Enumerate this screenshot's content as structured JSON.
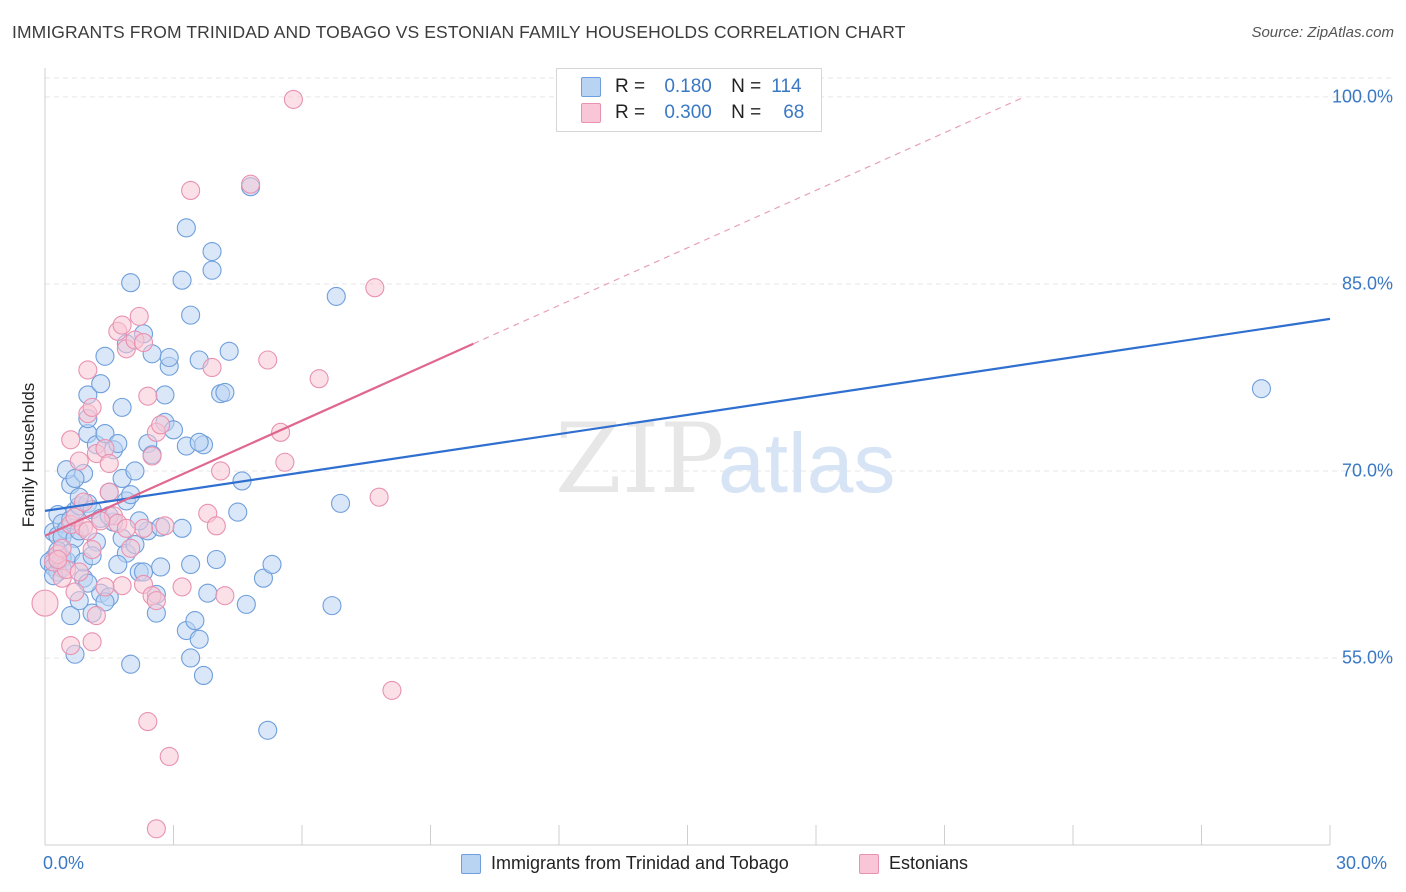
{
  "title": "IMMIGRANTS FROM TRINIDAD AND TOBAGO VS ESTONIAN FAMILY HOUSEHOLDS CORRELATION CHART",
  "source": "Source: ZipAtlas.com",
  "watermark": {
    "zip": "ZIP",
    "atlas": "atlas"
  },
  "legend": {
    "r_label": "R =",
    "n_label": "N =",
    "rows": [
      {
        "r": "0.180",
        "n": "114"
      },
      {
        "r": "0.300",
        "n": "68"
      }
    ]
  },
  "colors": {
    "blue_fill": "#b9d3f3",
    "blue_stroke": "#6f9fdc",
    "blue_line": "#2f6fcf",
    "pink_fill": "#f8c6d6",
    "pink_stroke": "#e892b1",
    "pink_line": "#e0678f",
    "grid": "#e6e6e6",
    "tick_text": "#3a78c4"
  },
  "chart_data": {
    "type": "scatter",
    "ylabel": "Family Households",
    "xlim": [
      0,
      30
    ],
    "ylim": [
      40,
      102
    ],
    "x_tick_labels": [
      "0.0%",
      "30.0%"
    ],
    "y_ticks": [
      {
        "value": 55,
        "label": "55.0%"
      },
      {
        "value": 70,
        "label": "70.0%"
      },
      {
        "value": 85,
        "label": "85.0%"
      },
      {
        "value": 100,
        "label": "100.0%"
      }
    ],
    "grid": true,
    "series": [
      {
        "name": "Immigrants from Trinidad and Tobago",
        "color": "blue",
        "trend": {
          "x0": 0,
          "y0": 66.8,
          "x1": 30,
          "y1": 82.2
        },
        "points": [
          [
            0.2,
            65.1
          ],
          [
            0.3,
            64.8
          ],
          [
            0.2,
            63.0
          ],
          [
            0.1,
            62.7
          ],
          [
            0.3,
            66.5
          ],
          [
            0.4,
            65.8
          ],
          [
            0.5,
            65.3
          ],
          [
            0.6,
            66.1
          ],
          [
            0.4,
            64.7
          ],
          [
            0.3,
            63.6
          ],
          [
            0.2,
            62.3
          ],
          [
            0.5,
            62.8
          ],
          [
            0.7,
            66.8
          ],
          [
            0.8,
            67.2
          ],
          [
            0.6,
            68.9
          ],
          [
            0.9,
            69.8
          ],
          [
            0.7,
            64.6
          ],
          [
            1.0,
            67.4
          ],
          [
            1.1,
            66.9
          ],
          [
            0.8,
            65.2
          ],
          [
            0.5,
            70.1
          ],
          [
            0.7,
            69.4
          ],
          [
            1.0,
            73.0
          ],
          [
            1.0,
            74.2
          ],
          [
            1.0,
            76.1
          ],
          [
            1.3,
            77.0
          ],
          [
            1.4,
            79.2
          ],
          [
            1.2,
            72.1
          ],
          [
            1.4,
            73.0
          ],
          [
            1.6,
            71.7
          ],
          [
            1.7,
            72.2
          ],
          [
            1.8,
            75.1
          ],
          [
            1.5,
            68.3
          ],
          [
            1.8,
            69.4
          ],
          [
            1.9,
            67.6
          ],
          [
            2.0,
            68.1
          ],
          [
            2.1,
            70.0
          ],
          [
            1.6,
            65.9
          ],
          [
            1.3,
            66.2
          ],
          [
            1.2,
            64.3
          ],
          [
            1.8,
            64.6
          ],
          [
            1.9,
            63.4
          ],
          [
            1.7,
            62.5
          ],
          [
            2.2,
            61.9
          ],
          [
            1.3,
            60.2
          ],
          [
            1.5,
            59.9
          ],
          [
            1.1,
            58.6
          ],
          [
            1.4,
            59.5
          ],
          [
            0.9,
            61.4
          ],
          [
            0.7,
            55.3
          ],
          [
            2.0,
            54.5
          ],
          [
            2.0,
            85.1
          ],
          [
            1.9,
            80.2
          ],
          [
            2.3,
            81.0
          ],
          [
            2.5,
            79.4
          ],
          [
            2.4,
            72.2
          ],
          [
            2.5,
            71.3
          ],
          [
            2.4,
            65.2
          ],
          [
            2.3,
            61.9
          ],
          [
            2.7,
            62.3
          ],
          [
            2.6,
            60.1
          ],
          [
            2.6,
            58.6
          ],
          [
            2.7,
            65.5
          ],
          [
            2.8,
            73.9
          ],
          [
            2.8,
            76.1
          ],
          [
            2.9,
            78.4
          ],
          [
            2.9,
            79.1
          ],
          [
            3.0,
            73.3
          ],
          [
            3.2,
            85.3
          ],
          [
            3.3,
            89.5
          ],
          [
            3.4,
            82.5
          ],
          [
            3.3,
            72.0
          ],
          [
            3.2,
            65.4
          ],
          [
            3.4,
            62.5
          ],
          [
            3.3,
            57.2
          ],
          [
            3.5,
            58.0
          ],
          [
            3.4,
            55.0
          ],
          [
            3.6,
            56.5
          ],
          [
            3.7,
            53.6
          ],
          [
            3.8,
            60.2
          ],
          [
            3.6,
            78.9
          ],
          [
            3.7,
            72.1
          ],
          [
            3.6,
            72.3
          ],
          [
            3.9,
            87.6
          ],
          [
            3.9,
            86.1
          ],
          [
            4.1,
            76.2
          ],
          [
            4.2,
            76.3
          ],
          [
            4.0,
            62.9
          ],
          [
            4.3,
            79.6
          ],
          [
            4.5,
            66.7
          ],
          [
            4.6,
            69.2
          ],
          [
            4.7,
            59.3
          ],
          [
            4.8,
            92.8
          ],
          [
            5.1,
            61.4
          ],
          [
            5.3,
            62.5
          ],
          [
            5.2,
            49.2
          ],
          [
            6.8,
            84.0
          ],
          [
            6.7,
            59.2
          ],
          [
            6.9,
            67.4
          ],
          [
            28.4,
            76.6
          ],
          [
            0.6,
            58.4
          ],
          [
            0.8,
            59.6
          ],
          [
            1.0,
            61.0
          ],
          [
            0.3,
            61.9
          ],
          [
            0.4,
            63.0
          ],
          [
            0.6,
            63.4
          ],
          [
            0.9,
            62.7
          ],
          [
            1.1,
            63.2
          ],
          [
            2.1,
            64.1
          ],
          [
            2.2,
            66.0
          ],
          [
            1.5,
            66.4
          ],
          [
            0.8,
            67.9
          ],
          [
            0.4,
            62.2
          ],
          [
            0.2,
            61.6
          ]
        ]
      },
      {
        "name": "Estonians",
        "color": "pink",
        "trend": {
          "x0": 0,
          "y0": 64.8,
          "x1": 10,
          "y1": 80.2
        },
        "trend_ext": {
          "x0": 10,
          "y0": 80.2,
          "x1": 22.8,
          "y1": 99.9
        },
        "points": [
          [
            0.0,
            59.4
          ],
          [
            0.2,
            62.7
          ],
          [
            0.3,
            63.3
          ],
          [
            0.4,
            61.4
          ],
          [
            0.5,
            62.1
          ],
          [
            0.6,
            65.7
          ],
          [
            0.7,
            66.3
          ],
          [
            0.9,
            65.5
          ],
          [
            1.0,
            65.2
          ],
          [
            1.1,
            63.7
          ],
          [
            0.6,
            72.5
          ],
          [
            0.8,
            70.8
          ],
          [
            1.0,
            74.6
          ],
          [
            1.1,
            75.1
          ],
          [
            1.0,
            78.1
          ],
          [
            1.2,
            71.4
          ],
          [
            1.4,
            71.8
          ],
          [
            1.5,
            70.6
          ],
          [
            1.6,
            66.4
          ],
          [
            1.7,
            65.8
          ],
          [
            1.5,
            68.3
          ],
          [
            1.7,
            81.2
          ],
          [
            1.8,
            81.7
          ],
          [
            1.9,
            79.8
          ],
          [
            2.1,
            80.5
          ],
          [
            2.2,
            82.4
          ],
          [
            2.3,
            80.3
          ],
          [
            2.4,
            76.0
          ],
          [
            2.5,
            71.2
          ],
          [
            2.6,
            73.1
          ],
          [
            2.7,
            73.7
          ],
          [
            2.3,
            60.9
          ],
          [
            2.5,
            60.0
          ],
          [
            2.6,
            59.6
          ],
          [
            2.3,
            65.4
          ],
          [
            2.0,
            63.8
          ],
          [
            1.8,
            60.8
          ],
          [
            1.4,
            60.7
          ],
          [
            0.7,
            60.3
          ],
          [
            1.1,
            56.3
          ],
          [
            1.2,
            58.4
          ],
          [
            0.6,
            56.0
          ],
          [
            3.4,
            92.5
          ],
          [
            3.2,
            60.7
          ],
          [
            3.8,
            66.6
          ],
          [
            3.9,
            78.3
          ],
          [
            4.0,
            65.6
          ],
          [
            4.1,
            70.0
          ],
          [
            4.2,
            60.0
          ],
          [
            4.8,
            93.0
          ],
          [
            5.2,
            78.9
          ],
          [
            5.5,
            73.1
          ],
          [
            5.6,
            70.7
          ],
          [
            6.4,
            77.4
          ],
          [
            7.7,
            84.7
          ],
          [
            7.8,
            67.9
          ],
          [
            8.1,
            52.4
          ],
          [
            5.8,
            99.8
          ],
          [
            2.4,
            49.9
          ],
          [
            2.9,
            47.1
          ],
          [
            2.6,
            41.3
          ],
          [
            0.9,
            67.5
          ],
          [
            0.4,
            63.8
          ],
          [
            0.3,
            62.9
          ],
          [
            0.8,
            61.9
          ],
          [
            1.3,
            66.0
          ],
          [
            1.9,
            65.4
          ],
          [
            2.8,
            65.6
          ]
        ]
      }
    ]
  }
}
